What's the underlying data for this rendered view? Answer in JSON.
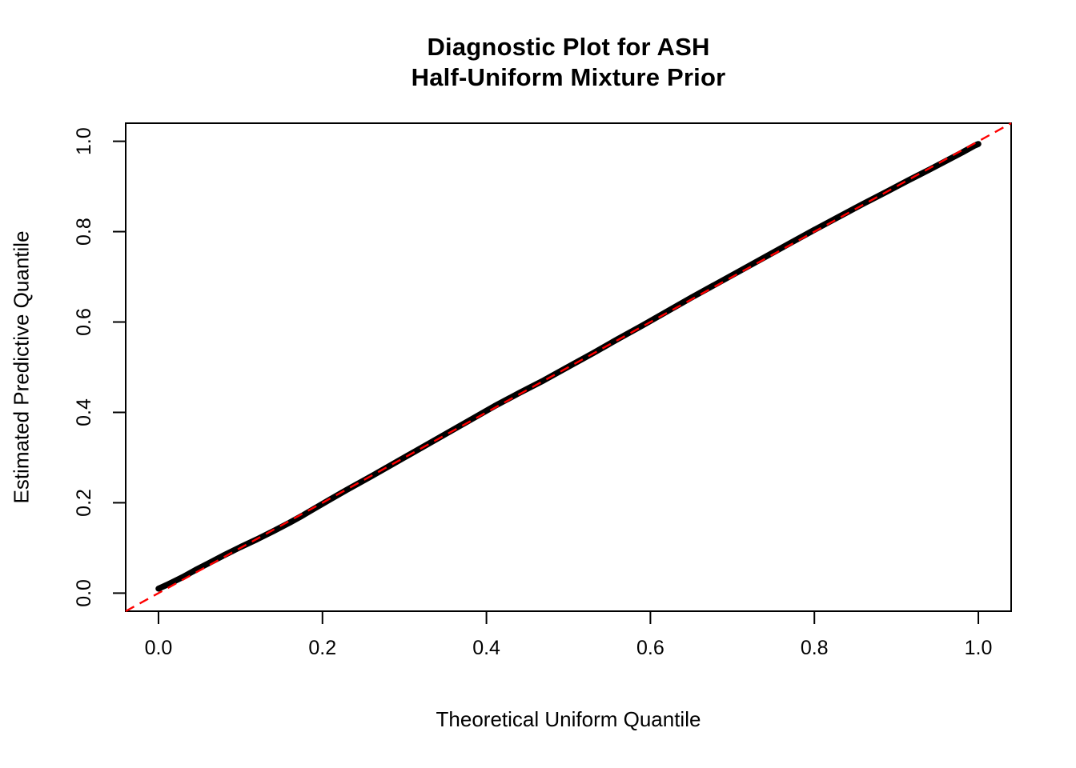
{
  "figure": {
    "background_color": "#ffffff"
  },
  "chart_data": {
    "type": "scatter",
    "title": "Diagnostic Plot for ASH\nHalf-Uniform Mixture Prior",
    "title_lines": [
      "Diagnostic Plot for ASH",
      "Half-Uniform Mixture Prior"
    ],
    "xlabel": "Theoretical Uniform Quantile",
    "ylabel": "Estimated Predictive Quantile",
    "xlim": [
      -0.04,
      1.04
    ],
    "ylim": [
      -0.04,
      1.04
    ],
    "x_ticks": [
      0.0,
      0.2,
      0.4,
      0.6,
      0.8,
      1.0
    ],
    "y_ticks": [
      0.0,
      0.2,
      0.4,
      0.6,
      0.8,
      1.0
    ],
    "x_tick_labels": [
      "0.0",
      "0.2",
      "0.4",
      "0.6",
      "0.8",
      "1.0"
    ],
    "y_tick_labels": [
      "0.0",
      "0.2",
      "0.4",
      "0.6",
      "0.8",
      "1.0"
    ],
    "grid": false,
    "legend": "none",
    "axis_color": "#000000",
    "series": [
      {
        "name": "estimated-vs-theoretical-quantiles",
        "style": "dense-points-band",
        "color": "#000000",
        "points": [
          [
            0.0,
            0.01
          ],
          [
            0.005,
            0.014
          ],
          [
            0.01,
            0.018
          ],
          [
            0.02,
            0.027
          ],
          [
            0.03,
            0.036
          ],
          [
            0.045,
            0.051
          ],
          [
            0.06,
            0.065
          ],
          [
            0.08,
            0.084
          ],
          [
            0.1,
            0.102
          ],
          [
            0.12,
            0.119
          ],
          [
            0.14,
            0.137
          ],
          [
            0.16,
            0.156
          ],
          [
            0.175,
            0.171
          ],
          [
            0.19,
            0.187
          ],
          [
            0.21,
            0.208
          ],
          [
            0.23,
            0.229
          ],
          [
            0.26,
            0.259
          ],
          [
            0.29,
            0.29
          ],
          [
            0.32,
            0.321
          ],
          [
            0.35,
            0.352
          ],
          [
            0.38,
            0.383
          ],
          [
            0.41,
            0.414
          ],
          [
            0.44,
            0.443
          ],
          [
            0.47,
            0.471
          ],
          [
            0.5,
            0.501
          ],
          [
            0.53,
            0.531
          ],
          [
            0.56,
            0.562
          ],
          [
            0.59,
            0.592
          ],
          [
            0.62,
            0.623
          ],
          [
            0.65,
            0.654
          ],
          [
            0.68,
            0.684
          ],
          [
            0.71,
            0.714
          ],
          [
            0.74,
            0.744
          ],
          [
            0.77,
            0.774
          ],
          [
            0.8,
            0.804
          ],
          [
            0.83,
            0.833
          ],
          [
            0.86,
            0.862
          ],
          [
            0.89,
            0.89
          ],
          [
            0.915,
            0.914
          ],
          [
            0.94,
            0.937
          ],
          [
            0.96,
            0.956
          ],
          [
            0.98,
            0.975
          ],
          [
            0.995,
            0.99
          ],
          [
            1.0,
            0.994
          ]
        ]
      },
      {
        "name": "reference-line-y-equals-x",
        "style": "dashed-line",
        "color": "#ff0000",
        "from": [
          -0.04,
          -0.04
        ],
        "to": [
          1.04,
          1.04
        ]
      }
    ]
  }
}
